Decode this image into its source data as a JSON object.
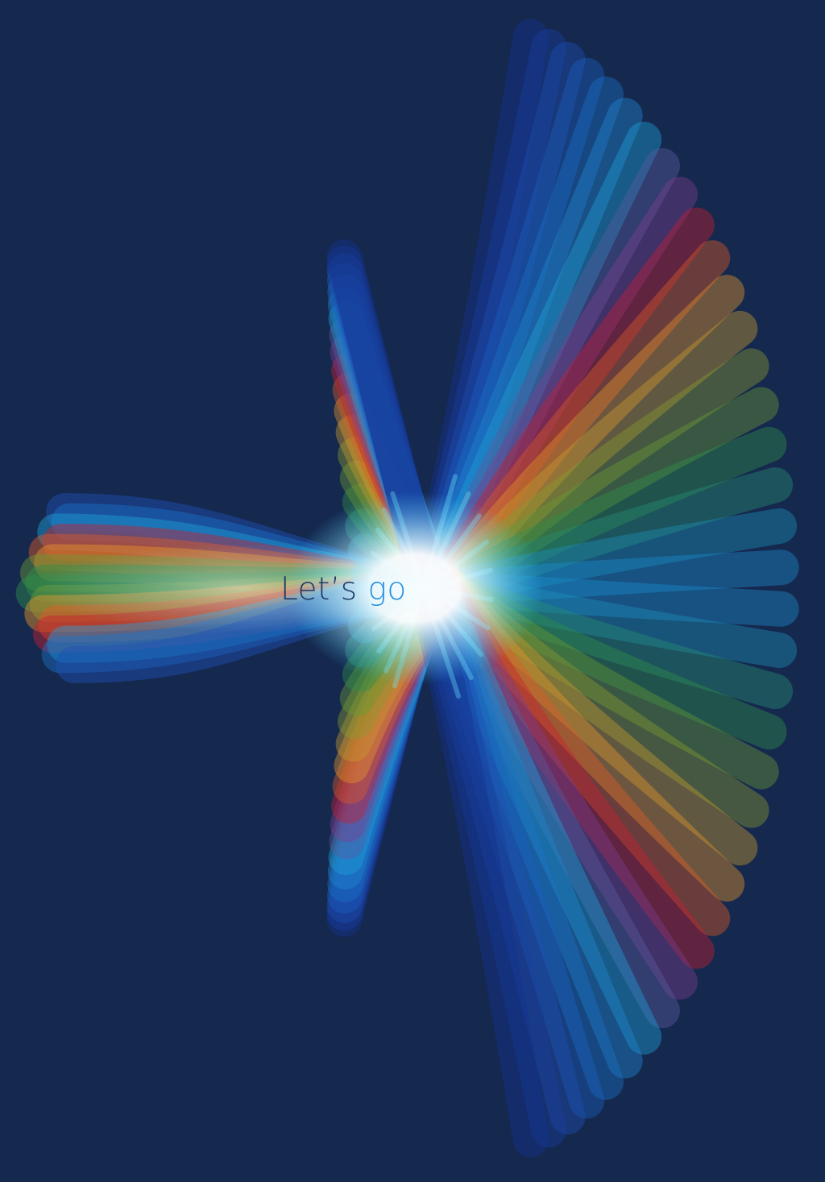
{
  "greeting": {
    "word_1": "Let’s",
    "word_2": "go"
  },
  "colors": {
    "background": "#15284e",
    "greeting_dark": "#1f3a66",
    "greeting_accent": "#2a8fe0",
    "ribbon_palette": [
      "#1f4fb5",
      "#1a73c9",
      "#1ea2d8",
      "#7e3f8f",
      "#c8202f",
      "#e05a25",
      "#e8952a",
      "#c99a2e",
      "#6a9a35",
      "#2f8f4a",
      "#1d92b8"
    ]
  },
  "ribbons": {
    "left_bundle_colors": [
      "#2f8f4a",
      "#6a9a35",
      "#e8952a",
      "#e05a25",
      "#c8202f",
      "#1ea2d8",
      "#1a73c9",
      "#1f4fb5"
    ],
    "fan_colors": [
      "#12338f",
      "#173f9f",
      "#1f4fb5",
      "#1a5fc0",
      "#1a73c9",
      "#1e88d2",
      "#1ea2d8",
      "#5a5aa0",
      "#7e3f8f",
      "#c8202f",
      "#e05a25",
      "#e8952a",
      "#c99a2e",
      "#8a9a30",
      "#6a9a35",
      "#2f8f4a",
      "#268f70",
      "#1d92b8",
      "#1b8ccc"
    ]
  }
}
